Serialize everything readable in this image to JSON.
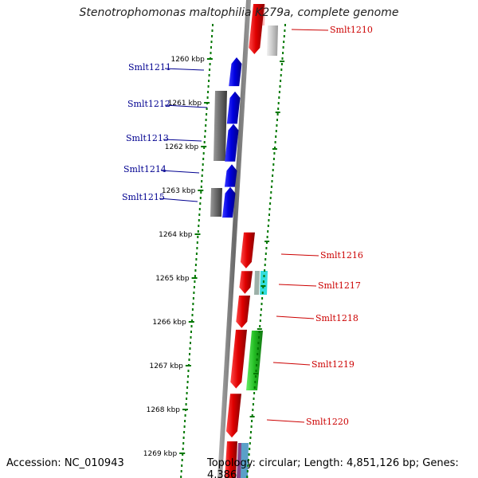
{
  "title": "Stenotrophomonas maltophilia K279a, complete genome",
  "accession": "Accession: NC_010943",
  "topology": "Topology: circular; Length: 4,851,126 bp; Genes: 4,386",
  "colors": {
    "forward": "#0000e0",
    "reverse": "#e00000",
    "grey": "#707070",
    "light_grey": "#c8c8c8",
    "green": "#22bb22",
    "cyan": "#33dddd",
    "scale_dash": "#007700",
    "label_forward": "#000090",
    "label_reverse": "#cc0000"
  },
  "scale_ticks": [
    {
      "label": "1260 kbp",
      "pos": 1260
    },
    {
      "label": "1261 kbp",
      "pos": 1261
    },
    {
      "label": "1262 kbp",
      "pos": 1262
    },
    {
      "label": "1263 kbp",
      "pos": 1263
    },
    {
      "label": "1264 kbp",
      "pos": 1264
    },
    {
      "label": "1265 kbp",
      "pos": 1265
    },
    {
      "label": "1266 kbp",
      "pos": 1266
    },
    {
      "label": "1267 kbp",
      "pos": 1267
    },
    {
      "label": "1268 kbp",
      "pos": 1268
    },
    {
      "label": "1269 kbp",
      "pos": 1269
    }
  ],
  "genes_forward": [
    {
      "name": "Smlt1211",
      "start": 1260.0,
      "end": 1260.62
    },
    {
      "name": "Smlt1212",
      "start": 1260.78,
      "end": 1261.48
    },
    {
      "name": "Smlt1213",
      "start": 1261.52,
      "end": 1262.34
    },
    {
      "name": "Smlt1214",
      "start": 1262.44,
      "end": 1262.92
    },
    {
      "name": "Smlt1215",
      "start": 1262.96,
      "end": 1263.62
    }
  ],
  "genes_reverse": [
    {
      "name": "Smlt1210",
      "start": 1258.9,
      "end": 1259.6
    },
    {
      "name": "Smlt1216",
      "start": 1263.96,
      "end": 1264.78
    },
    {
      "name": "Smlt1217",
      "start": 1264.84,
      "end": 1265.36
    },
    {
      "name": "Smlt1218",
      "start": 1265.4,
      "end": 1266.14
    },
    {
      "name": "Smlt1219",
      "start": 1266.18,
      "end": 1267.52
    },
    {
      "name": "Smlt1220",
      "start": 1267.64,
      "end": 1268.64
    }
  ]
}
